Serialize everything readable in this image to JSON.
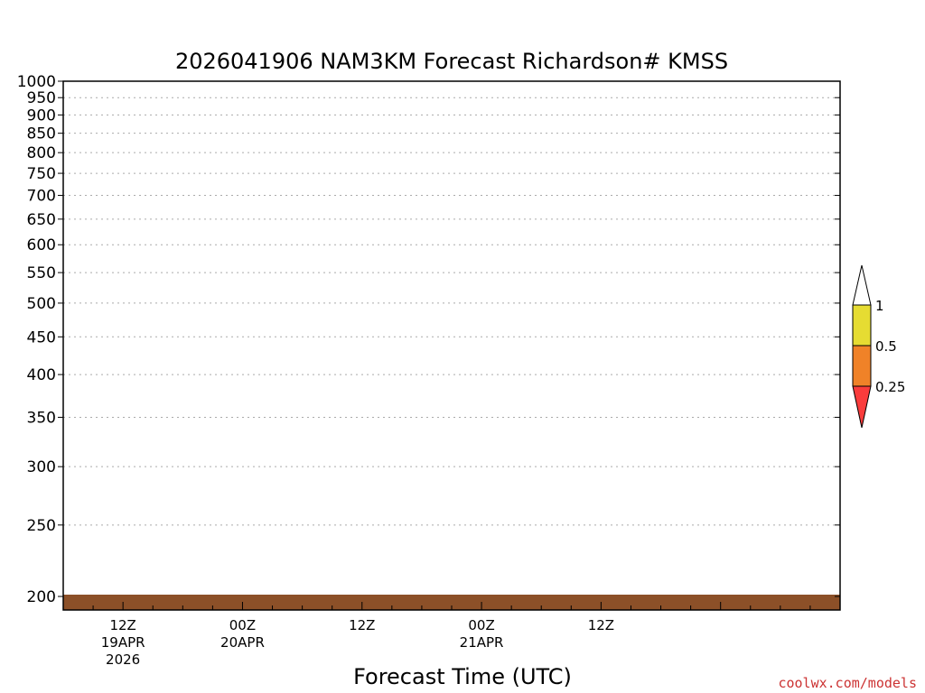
{
  "chart_data": {
    "type": "heatmap",
    "title": "2026041906 NAM3KM Forecast Richardson# KMSS",
    "xlabel": "Forecast Time (UTC)",
    "ylabel": "",
    "y_axis": {
      "label": "",
      "scale": "log",
      "range_hpa": [
        1000,
        200
      ],
      "ticks": [
        "200",
        "250",
        "300",
        "350",
        "400",
        "450",
        "500",
        "550",
        "600",
        "650",
        "700",
        "750",
        "800",
        "850",
        "900",
        "950",
        "1000"
      ],
      "grid": "dotted"
    },
    "x_axis": {
      "range_hours": [
        0,
        78
      ],
      "ticks": [
        {
          "hour": 6,
          "line1": "12Z",
          "line2": "19APR",
          "line3": "2026"
        },
        {
          "hour": 18,
          "line1": "00Z",
          "line2": "20APR",
          "line3": ""
        },
        {
          "hour": 30,
          "line1": "12Z",
          "line2": "",
          "line3": ""
        },
        {
          "hour": 42,
          "line1": "00Z",
          "line2": "21APR",
          "line3": ""
        },
        {
          "hour": 54,
          "line1": "12Z",
          "line2": "",
          "line3": ""
        }
      ]
    },
    "legend": {
      "placement": "right",
      "levels": [
        {
          "label": "1",
          "value": 1.0,
          "color": "#e6dc32"
        },
        {
          "label": "0.5",
          "value": 0.5,
          "color": "#f08228"
        },
        {
          "label": "0.25",
          "value": 0.25,
          "color": "#fa3c3c"
        }
      ],
      "over_color": "#ffffff",
      "under_color": "#fa3c3c"
    },
    "colors": {
      "below_ground": "#8c5028",
      "grid": "#aaaaaa"
    },
    "watermark": "coolwx.com/models"
  }
}
